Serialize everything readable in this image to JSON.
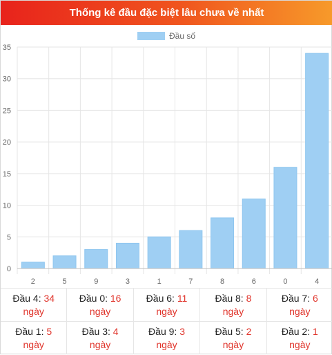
{
  "header": {
    "title": "Thống kê đầu đặc biệt lâu chưa về nhất"
  },
  "chart_data": {
    "type": "bar",
    "title": "",
    "xlabel": "",
    "ylabel": "",
    "categories": [
      "2",
      "5",
      "9",
      "3",
      "1",
      "7",
      "8",
      "6",
      "0",
      "4"
    ],
    "series": [
      {
        "name": "Đầu số",
        "values": [
          1,
          2,
          3,
          4,
          5,
          6,
          8,
          11,
          16,
          34
        ]
      }
    ],
    "ylim": [
      0,
      35
    ],
    "yticks": [
      0,
      5,
      10,
      15,
      20,
      25,
      30,
      35
    ],
    "grid": true,
    "legend": "top-center",
    "colors": {
      "bar": "#9fcff3",
      "bar_border": "#8ec6ef",
      "grid": "#e5e5e5",
      "axis": "#bdbdbd"
    }
  },
  "stats": {
    "unit": "ngày",
    "rows": [
      [
        {
          "label": "Đầu 4:",
          "value": "34"
        },
        {
          "label": "Đầu 0:",
          "value": "16"
        },
        {
          "label": "Đầu 6:",
          "value": "11"
        },
        {
          "label": "Đầu 8:",
          "value": "8"
        },
        {
          "label": "Đầu 7:",
          "value": "6"
        }
      ],
      [
        {
          "label": "Đầu 1:",
          "value": "5"
        },
        {
          "label": "Đầu 3:",
          "value": "4"
        },
        {
          "label": "Đầu 9:",
          "value": "3"
        },
        {
          "label": "Đầu 5:",
          "value": "2"
        },
        {
          "label": "Đầu 2:",
          "value": "1"
        }
      ]
    ]
  },
  "colors": {
    "accent_red": "#e0342b"
  }
}
